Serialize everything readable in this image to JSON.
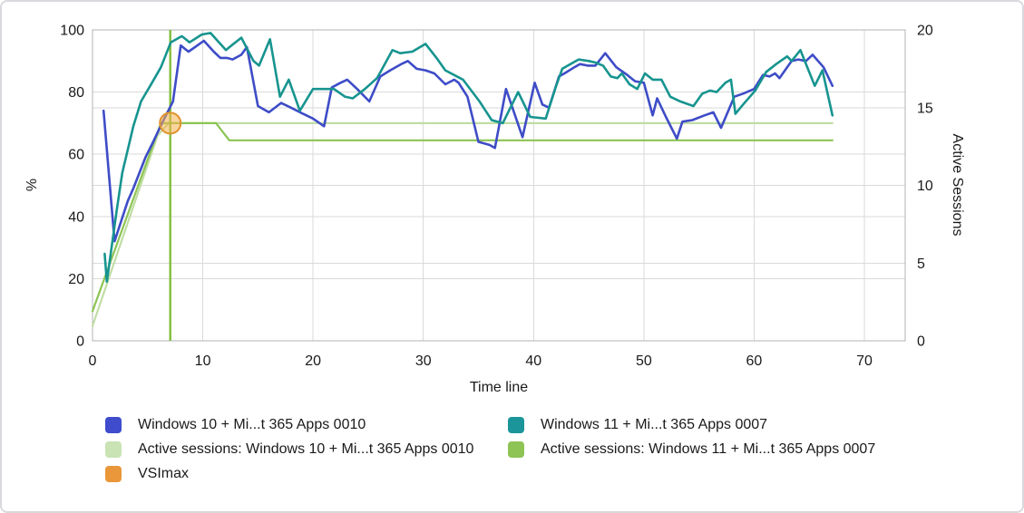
{
  "chart_data": {
    "type": "line",
    "title": "",
    "xlabel": "Time line",
    "ylabel_left": "%",
    "ylabel_right": "Active Sessions",
    "x_range": [
      0,
      73.7
    ],
    "x_ticks": [
      0,
      10,
      20,
      30,
      40,
      50,
      60,
      70
    ],
    "y_left_range": [
      0,
      100
    ],
    "y_left_ticks": [
      0,
      20,
      40,
      60,
      80,
      100
    ],
    "y_right_range": [
      0,
      20
    ],
    "y_right_ticks": [
      0,
      5,
      10,
      15,
      20
    ],
    "grid": true,
    "legend_position": "bottom",
    "series": [
      {
        "name": "Windows 10 + Mi...t 365 Apps 0010",
        "axis": "left",
        "color": "#3e4cc7",
        "width": 2.6,
        "points": [
          [
            1,
            74
          ],
          [
            2,
            32
          ],
          [
            3.2,
            45
          ],
          [
            3.7,
            49
          ],
          [
            4.8,
            59
          ],
          [
            5.5,
            64
          ],
          [
            6.3,
            70
          ],
          [
            7.3,
            77
          ],
          [
            8,
            95
          ],
          [
            8.7,
            93
          ],
          [
            9.3,
            94.5
          ],
          [
            10.1,
            96.5
          ],
          [
            11,
            93
          ],
          [
            11.6,
            91
          ],
          [
            12.2,
            91
          ],
          [
            12.7,
            90.5
          ],
          [
            13.5,
            92
          ],
          [
            14,
            94.5
          ],
          [
            15,
            75.5
          ],
          [
            16,
            73.5
          ],
          [
            17.1,
            76.5
          ],
          [
            18,
            75
          ],
          [
            19.1,
            73
          ],
          [
            20,
            71.5
          ],
          [
            21,
            69
          ],
          [
            21.7,
            81.5
          ],
          [
            22.5,
            83
          ],
          [
            23.1,
            84
          ],
          [
            24,
            81
          ],
          [
            25.1,
            77
          ],
          [
            26.1,
            85
          ],
          [
            27,
            87
          ],
          [
            28,
            89
          ],
          [
            28.6,
            90
          ],
          [
            29.4,
            87.5
          ],
          [
            30.2,
            87
          ],
          [
            31,
            86
          ],
          [
            32,
            82.5
          ],
          [
            32.8,
            84
          ],
          [
            33.2,
            83
          ],
          [
            34,
            78.5
          ],
          [
            35,
            64
          ],
          [
            36,
            63
          ],
          [
            36.5,
            62
          ],
          [
            37.5,
            81
          ],
          [
            39,
            65.5
          ],
          [
            40.1,
            83
          ],
          [
            40.8,
            76
          ],
          [
            41.4,
            75
          ],
          [
            42.3,
            85
          ],
          [
            42.8,
            86
          ],
          [
            43.7,
            88
          ],
          [
            44.2,
            89
          ],
          [
            44.9,
            88.5
          ],
          [
            45.6,
            88.5
          ],
          [
            46.5,
            92.5
          ],
          [
            47.5,
            88
          ],
          [
            48.5,
            85.5
          ],
          [
            49.2,
            83.5
          ],
          [
            50,
            83
          ],
          [
            50.8,
            72.5
          ],
          [
            51.2,
            78
          ],
          [
            52,
            72
          ],
          [
            53,
            65
          ],
          [
            53.5,
            70.5
          ],
          [
            54.4,
            71
          ],
          [
            55.5,
            72.5
          ],
          [
            56.3,
            73.5
          ],
          [
            57,
            68.5
          ],
          [
            58.2,
            78.5
          ],
          [
            59,
            79.5
          ],
          [
            60,
            81
          ],
          [
            60.8,
            85.5
          ],
          [
            61.4,
            85
          ],
          [
            61.9,
            86
          ],
          [
            62.3,
            84.5
          ],
          [
            63.4,
            90
          ],
          [
            64,
            90.5
          ],
          [
            64.7,
            90
          ],
          [
            65.3,
            92
          ],
          [
            66.3,
            88
          ],
          [
            66.7,
            85
          ],
          [
            67.1,
            82
          ]
        ]
      },
      {
        "name": "Windows 11 + Mi...t 365 Apps 0007",
        "axis": "left",
        "color": "#17948f",
        "width": 2.6,
        "points": [
          [
            1.1,
            28
          ],
          [
            1.3,
            19
          ],
          [
            2.2,
            42
          ],
          [
            2.7,
            54
          ],
          [
            3.7,
            69
          ],
          [
            4.4,
            77
          ],
          [
            5.4,
            83
          ],
          [
            6.2,
            88
          ],
          [
            7.1,
            96
          ],
          [
            8.1,
            98
          ],
          [
            8.8,
            96
          ],
          [
            9.9,
            98.5
          ],
          [
            10.7,
            99
          ],
          [
            12.1,
            93.5
          ],
          [
            12.6,
            95
          ],
          [
            13.5,
            97.5
          ],
          [
            14.6,
            90
          ],
          [
            15.1,
            88.5
          ],
          [
            16.1,
            97
          ],
          [
            17,
            78.5
          ],
          [
            17.8,
            84
          ],
          [
            18.8,
            74
          ],
          [
            20,
            81
          ],
          [
            21.9,
            81
          ],
          [
            22.9,
            78.5
          ],
          [
            23.6,
            78
          ],
          [
            24.7,
            81
          ],
          [
            25.8,
            84.5
          ],
          [
            27.2,
            93.5
          ],
          [
            27.9,
            92.5
          ],
          [
            29,
            93
          ],
          [
            30.2,
            95.5
          ],
          [
            31.2,
            91
          ],
          [
            32,
            87
          ],
          [
            33.6,
            84
          ],
          [
            35.1,
            77
          ],
          [
            36.2,
            71
          ],
          [
            37.2,
            70
          ],
          [
            38.6,
            80
          ],
          [
            39.7,
            72
          ],
          [
            41.1,
            71.5
          ],
          [
            42,
            81.5
          ],
          [
            42.6,
            87.5
          ],
          [
            43.1,
            88.5
          ],
          [
            44.1,
            90.5
          ],
          [
            45,
            90
          ],
          [
            45.6,
            89.5
          ],
          [
            46.3,
            88.5
          ],
          [
            47,
            85
          ],
          [
            47.6,
            84.5
          ],
          [
            48,
            86
          ],
          [
            48.7,
            82.5
          ],
          [
            49.4,
            81
          ],
          [
            50.1,
            86
          ],
          [
            50.8,
            84
          ],
          [
            51.6,
            84
          ],
          [
            52.4,
            78.5
          ],
          [
            53.3,
            77
          ],
          [
            54.5,
            75.5
          ],
          [
            55.3,
            79.5
          ],
          [
            56,
            80.5
          ],
          [
            56.6,
            80
          ],
          [
            57.4,
            83
          ],
          [
            57.9,
            84
          ],
          [
            58.3,
            73
          ],
          [
            59,
            76
          ],
          [
            60.1,
            80.5
          ],
          [
            61.1,
            86.5
          ],
          [
            62,
            89
          ],
          [
            63,
            91.5
          ],
          [
            63.4,
            90
          ],
          [
            64.2,
            93.5
          ],
          [
            65.5,
            82
          ],
          [
            66.2,
            87
          ],
          [
            67.1,
            72.5
          ]
        ]
      },
      {
        "name": "Active sessions: Windows 10 + Mi...t 365 Apps 0010",
        "axis": "right",
        "color": "#c0dda4",
        "width": 2.2,
        "points": [
          [
            0,
            0.95
          ],
          [
            5.9,
            13.2
          ],
          [
            6.9,
            14
          ],
          [
            67.1,
            14
          ]
        ]
      },
      {
        "name": "Active sessions: Windows 11 + Mi...t 365 Apps 0007",
        "axis": "right",
        "color": "#8cc453",
        "width": 2.2,
        "points": [
          [
            0,
            1.9
          ],
          [
            6.2,
            14
          ],
          [
            11.2,
            14
          ],
          [
            12.4,
            12.9
          ],
          [
            67.1,
            12.9
          ]
        ]
      }
    ],
    "vsimax_marker": {
      "label": "VSImax",
      "x": 7.05,
      "y_percent": 70,
      "line_color": "#82bd3c",
      "marker_fill": "#f5b04c",
      "marker_fill_opacity": 0.55,
      "marker_stroke": "#e0922e"
    }
  },
  "legend": {
    "items": [
      {
        "label": "Windows 10 + Mi...t 365 Apps 0010",
        "color": "#3f4ccc"
      },
      {
        "label": "Windows 11 + Mi...t 365 Apps 0007",
        "color": "#1b9599"
      },
      {
        "label": "Active sessions: Windows 10 + Mi...t 365 Apps 0010",
        "color": "#c9e3b4"
      },
      {
        "label": "Active sessions: Windows 11 + Mi...t 365 Apps 0007",
        "color": "#8ec456"
      },
      {
        "label": "VSImax",
        "color": "#e9973a"
      }
    ]
  }
}
